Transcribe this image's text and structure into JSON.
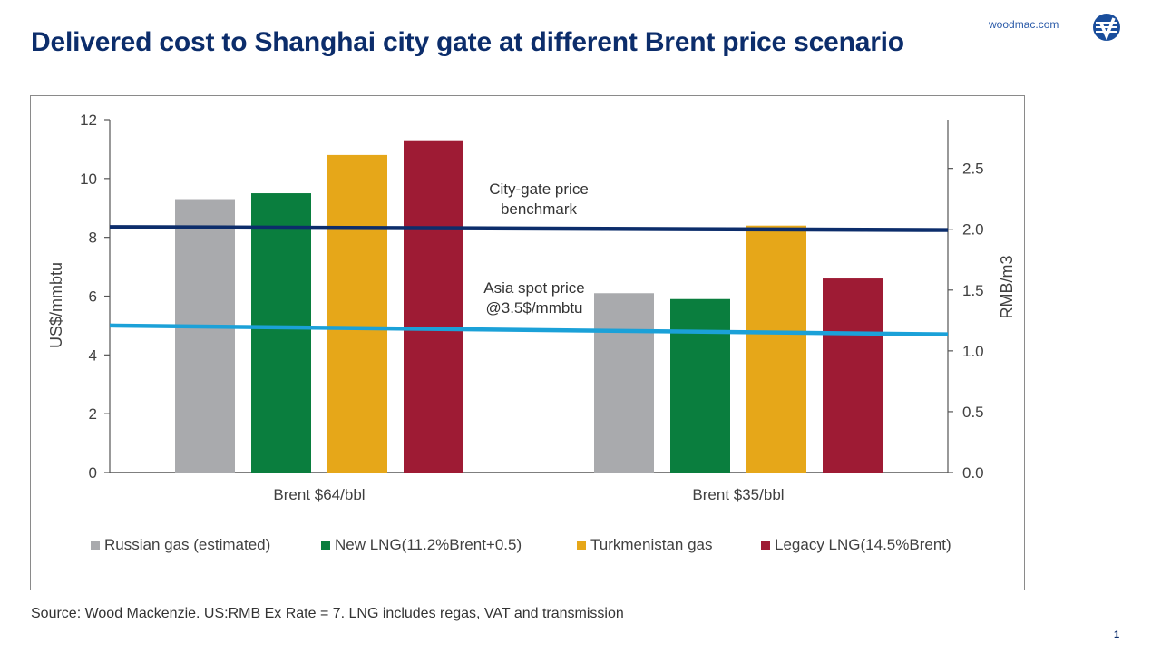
{
  "header": {
    "title": "Delivered cost to Shanghai city gate at different Brent price scenario",
    "brand_url": "woodmac.com"
  },
  "footer": {
    "source": "Source: Wood Mackenzie. US:RMB Ex Rate = 7. LNG includes regas, VAT and transmission",
    "page_number": "1"
  },
  "chart_data": {
    "type": "bar",
    "categories": [
      "Brent $64/bbl",
      "Brent $35/bbl"
    ],
    "series": [
      {
        "name": "Russian gas (estimated)",
        "color": "#a9aaad",
        "values": [
          9.3,
          6.1
        ]
      },
      {
        "name": "New LNG(11.2%Brent+0.5)",
        "color": "#0a7e3e",
        "values": [
          9.5,
          5.9
        ]
      },
      {
        "name": "Turkmenistan gas",
        "color": "#e6a719",
        "values": [
          10.8,
          8.4
        ]
      },
      {
        "name": "Legacy LNG(14.5%Brent)",
        "color": "#9e1b34",
        "values": [
          11.3,
          6.6
        ]
      }
    ],
    "ylabel": "US$/mmbtu",
    "ylim": [
      0,
      12
    ],
    "yticks": [
      "0",
      "2",
      "4",
      "6",
      "8",
      "10",
      "12"
    ],
    "y2label": "RMB/m3",
    "y2lim": [
      0,
      2.9
    ],
    "y2ticks": [
      "0.0",
      "0.5",
      "1.0",
      "1.5",
      "2.0",
      "2.5"
    ],
    "reference_lines": [
      {
        "label_lines": [
          "City-gate price",
          "benchmark"
        ],
        "color": "#0c2d6b",
        "y_start": 8.35,
        "y_end": 8.25
      },
      {
        "label_lines": [
          "Asia spot price",
          "@3.5$/mmbtu"
        ],
        "color": "#1ba1d8",
        "y_start": 5.0,
        "y_end": 4.7
      }
    ],
    "legend_position": "bottom",
    "grid": false
  }
}
